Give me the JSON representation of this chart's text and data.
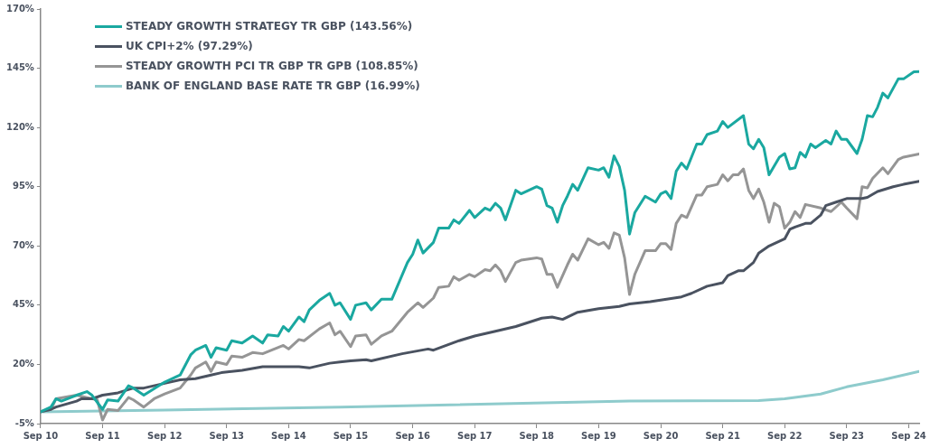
{
  "chart_data": {
    "type": "line",
    "xlim": [
      "2010-09",
      "2024-11"
    ],
    "xticks": [
      {
        "value": "2010-09",
        "label": "Sep 10"
      },
      {
        "value": "2011-09",
        "label": "Sep 11"
      },
      {
        "value": "2012-09",
        "label": "Sep 12"
      },
      {
        "value": "2013-09",
        "label": "Sep 13"
      },
      {
        "value": "2014-09",
        "label": "Sep 14"
      },
      {
        "value": "2015-09",
        "label": "Sep 15"
      },
      {
        "value": "2016-09",
        "label": "Sep 16"
      },
      {
        "value": "2017-09",
        "label": "Sep 17"
      },
      {
        "value": "2018-09",
        "label": "Sep 18"
      },
      {
        "value": "2019-09",
        "label": "Sep 19"
      },
      {
        "value": "2020-09",
        "label": "Sep 20"
      },
      {
        "value": "2021-09",
        "label": "Sep 21"
      },
      {
        "value": "2022-09",
        "label": "Sep 22"
      },
      {
        "value": "2023-09",
        "label": "Sep 23"
      },
      {
        "value": "2024-09",
        "label": "Sep 24"
      }
    ],
    "ylim": [
      -5,
      170
    ],
    "yticks": [
      {
        "value": -5,
        "label": "-5%"
      },
      {
        "value": 20,
        "label": "20%"
      },
      {
        "value": 45,
        "label": "45%"
      },
      {
        "value": 70,
        "label": "70%"
      },
      {
        "value": 95,
        "label": "95%"
      },
      {
        "value": 120,
        "label": "120%"
      },
      {
        "value": 145,
        "label": "145%"
      },
      {
        "value": 170,
        "label": "170%"
      }
    ],
    "legend": "top left",
    "series": [
      {
        "name": "STEADY GROWTH STRATEGY TR GBP (143.56%)",
        "color": "#1aa8a0",
        "x": [
          "2010-09",
          "2010-11",
          "2010-12",
          "2011-01",
          "2011-04",
          "2011-06",
          "2011-07",
          "2011-09",
          "2011-10",
          "2011-12",
          "2012-02",
          "2012-03",
          "2012-05",
          "2012-09",
          "2012-12",
          "2013-02",
          "2013-03",
          "2013-05",
          "2013-06",
          "2013-07",
          "2013-09",
          "2013-10",
          "2013-12",
          "2014-02",
          "2014-04",
          "2014-05",
          "2014-07",
          "2014-08",
          "2014-09",
          "2014-11",
          "2014-12",
          "2015-01",
          "2015-03",
          "2015-05",
          "2015-06",
          "2015-07",
          "2015-09",
          "2015-10",
          "2015-12",
          "2016-01",
          "2016-03",
          "2016-05",
          "2016-08",
          "2016-09",
          "2016-10",
          "2016-11",
          "2017-01",
          "2017-02",
          "2017-04",
          "2017-05",
          "2017-06",
          "2017-08",
          "2017-09",
          "2017-11",
          "2017-12",
          "2018-01",
          "2018-02",
          "2018-03",
          "2018-05",
          "2018-06",
          "2018-09",
          "2018-10",
          "2018-11",
          "2018-12",
          "2019-01",
          "2019-02",
          "2019-03",
          "2019-04",
          "2019-05",
          "2019-07",
          "2019-09",
          "2019-10",
          "2019-11",
          "2019-12",
          "2020-01",
          "2020-02",
          "2020-03",
          "2020-04",
          "2020-06",
          "2020-08",
          "2020-09",
          "2020-10",
          "2020-11",
          "2020-12",
          "2021-01",
          "2021-02",
          "2021-04",
          "2021-05",
          "2021-06",
          "2021-08",
          "2021-09",
          "2021-10",
          "2022-01",
          "2022-02",
          "2022-03",
          "2022-04",
          "2022-05",
          "2022-06",
          "2022-08",
          "2022-09",
          "2022-10",
          "2022-11",
          "2022-12",
          "2023-01",
          "2023-02",
          "2023-03",
          "2023-05",
          "2023-06",
          "2023-07",
          "2023-08",
          "2023-09",
          "2023-11",
          "2023-12",
          "2024-01",
          "2024-02",
          "2024-03",
          "2024-04",
          "2024-05",
          "2024-07",
          "2024-08",
          "2024-10",
          "2024-11"
        ],
        "values": [
          0,
          2,
          5.5,
          4.5,
          7,
          8.5,
          7,
          1,
          5,
          4.5,
          11,
          10,
          7,
          12.5,
          15.5,
          24,
          26,
          28,
          23,
          27,
          26,
          30,
          29,
          32,
          29,
          32.5,
          32,
          36,
          34,
          40,
          38,
          43,
          47,
          50,
          45,
          46,
          39,
          45,
          46,
          43,
          47.5,
          47.5,
          63,
          66.5,
          72.5,
          67,
          71.5,
          77.5,
          77.5,
          81,
          79.5,
          85,
          82,
          86,
          85,
          88,
          86,
          81,
          93.5,
          92,
          95,
          94,
          87,
          86,
          80,
          87,
          91,
          96,
          93.5,
          103,
          102,
          103,
          99,
          108,
          103.5,
          93.5,
          75,
          84,
          91,
          88.5,
          92,
          93,
          90,
          101.5,
          105,
          102.5,
          113,
          113,
          117,
          118.5,
          122.5,
          120,
          125,
          113,
          111,
          115,
          111.5,
          100,
          107.5,
          109,
          102.5,
          103,
          109.5,
          107.5,
          113,
          111.5,
          114.5,
          113,
          118.5,
          115,
          115,
          109,
          115,
          125,
          124.5,
          128.5,
          134.5,
          132.5,
          140.5,
          140.5,
          143.5,
          143.56
        ]
      },
      {
        "name": "UK CPI+2% (97.29%)",
        "color": "#4a5260",
        "x": [
          "2010-09",
          "2010-11",
          "2010-12",
          "2011-04",
          "2011-05",
          "2011-07",
          "2011-09",
          "2011-12",
          "2012-03",
          "2012-05",
          "2012-09",
          "2012-12",
          "2013-03",
          "2013-06",
          "2013-08",
          "2013-12",
          "2014-04",
          "2014-07",
          "2014-11",
          "2015-01",
          "2015-05",
          "2015-07",
          "2015-09",
          "2015-12",
          "2016-01",
          "2016-07",
          "2016-12",
          "2017-01",
          "2017-06",
          "2017-09",
          "2018-01",
          "2018-05",
          "2018-10",
          "2018-12",
          "2019-02",
          "2019-05",
          "2019-09",
          "2020-01",
          "2020-03",
          "2020-05",
          "2020-07",
          "2021-01",
          "2021-03",
          "2021-06",
          "2021-09",
          "2021-10",
          "2021-12",
          "2022-01",
          "2022-03",
          "2022-04",
          "2022-06",
          "2022-09",
          "2022-10",
          "2022-11",
          "2023-01",
          "2023-02",
          "2023-04",
          "2023-05",
          "2023-07",
          "2023-09",
          "2023-12",
          "2024-01",
          "2024-03",
          "2024-06",
          "2024-08",
          "2024-11"
        ],
        "values": [
          0,
          1,
          2,
          4.5,
          5.5,
          5.5,
          7,
          8,
          10,
          10,
          12,
          13.5,
          14,
          15.5,
          16.5,
          17.5,
          19,
          19,
          19,
          18.5,
          20.5,
          21,
          21.5,
          22,
          21.5,
          24.5,
          26.5,
          26,
          30,
          32,
          34,
          36,
          39.5,
          40,
          39,
          42,
          43.5,
          44.5,
          45.5,
          46,
          46.5,
          48.5,
          50,
          53,
          54.5,
          57.5,
          59.5,
          59.5,
          63,
          67,
          70,
          73,
          77,
          78,
          79.5,
          79.5,
          83,
          87,
          88.5,
          90,
          90,
          90.5,
          93,
          95,
          96,
          97.29
        ]
      },
      {
        "name": "STEADY GROWTH PCI TR GBP TR GPB (108.85%)",
        "color": "#959595",
        "x": [
          "2010-09",
          "2010-11",
          "2010-12",
          "2011-04",
          "2011-06",
          "2011-08",
          "2011-09",
          "2011-10",
          "2011-12",
          "2012-02",
          "2012-03",
          "2012-05",
          "2012-07",
          "2012-09",
          "2012-12",
          "2013-02",
          "2013-03",
          "2013-05",
          "2013-06",
          "2013-07",
          "2013-09",
          "2013-10",
          "2013-12",
          "2014-02",
          "2014-04",
          "2014-08",
          "2014-09",
          "2014-11",
          "2014-12",
          "2015-03",
          "2015-05",
          "2015-06",
          "2015-07",
          "2015-09",
          "2015-10",
          "2015-12",
          "2016-01",
          "2016-03",
          "2016-05",
          "2016-08",
          "2016-09",
          "2016-10",
          "2016-11",
          "2017-01",
          "2017-02",
          "2017-04",
          "2017-05",
          "2017-06",
          "2017-08",
          "2017-09",
          "2017-11",
          "2017-12",
          "2018-01",
          "2018-02",
          "2018-03",
          "2018-05",
          "2018-06",
          "2018-09",
          "2018-10",
          "2018-11",
          "2018-12",
          "2019-01",
          "2019-02",
          "2019-03",
          "2019-04",
          "2019-05",
          "2019-07",
          "2019-09",
          "2019-10",
          "2019-11",
          "2019-12",
          "2020-01",
          "2020-02",
          "2020-03",
          "2020-04",
          "2020-06",
          "2020-08",
          "2020-09",
          "2020-10",
          "2020-11",
          "2020-12",
          "2021-01",
          "2021-02",
          "2021-04",
          "2021-05",
          "2021-06",
          "2021-08",
          "2021-09",
          "2021-10",
          "2021-11",
          "2021-12",
          "2022-01",
          "2022-02",
          "2022-03",
          "2022-04",
          "2022-05",
          "2022-06",
          "2022-07",
          "2022-08",
          "2022-09",
          "2022-10",
          "2022-11",
          "2022-12",
          "2023-01",
          "2023-04",
          "2023-06",
          "2023-08",
          "2023-09",
          "2023-11",
          "2023-12",
          "2024-01",
          "2024-02",
          "2024-04",
          "2024-05",
          "2024-07",
          "2024-08",
          "2024-11"
        ],
        "values": [
          0,
          1,
          5.5,
          7,
          6,
          5,
          -3.5,
          1,
          0.5,
          6,
          5,
          2,
          5.5,
          7.5,
          10,
          15.5,
          18.5,
          21,
          17,
          21,
          20,
          23.5,
          23,
          25,
          24.5,
          28,
          26.5,
          30.5,
          30,
          35,
          37.5,
          32.5,
          34,
          27.5,
          32,
          32.5,
          28.5,
          32,
          34,
          42,
          44,
          46,
          44,
          48,
          52.5,
          53,
          57,
          55.5,
          58,
          57,
          60,
          59.5,
          62,
          59.5,
          55,
          63,
          64,
          65,
          64.5,
          58,
          58,
          52.5,
          57.5,
          62,
          66.5,
          64,
          73,
          70.5,
          71.5,
          69,
          75.5,
          74.5,
          65,
          49.5,
          58,
          68,
          68,
          71,
          71,
          68.5,
          79.5,
          83,
          82,
          91.5,
          91.5,
          95,
          96,
          100,
          97.5,
          100,
          100,
          102.5,
          93.5,
          90,
          94,
          88.5,
          80,
          88,
          86.5,
          77.5,
          80,
          84.5,
          82,
          87.5,
          86,
          84.5,
          88.5,
          86,
          81.5,
          95,
          94.5,
          98.5,
          103,
          100.5,
          106.5,
          107.5,
          108.85
        ]
      },
      {
        "name": "BANK OF ENGLAND BASE RATE TR GBP (16.99%)",
        "color": "#8ecbcc",
        "x": [
          "2010-09",
          "2012-09",
          "2015-07",
          "2020-03",
          "2022-04",
          "2022-09",
          "2023-04",
          "2023-09",
          "2024-04",
          "2024-11"
        ],
        "values": [
          0,
          0.7,
          2,
          4.5,
          4.7,
          5.5,
          7.5,
          10.5,
          13.5,
          16.99
        ]
      }
    ]
  }
}
